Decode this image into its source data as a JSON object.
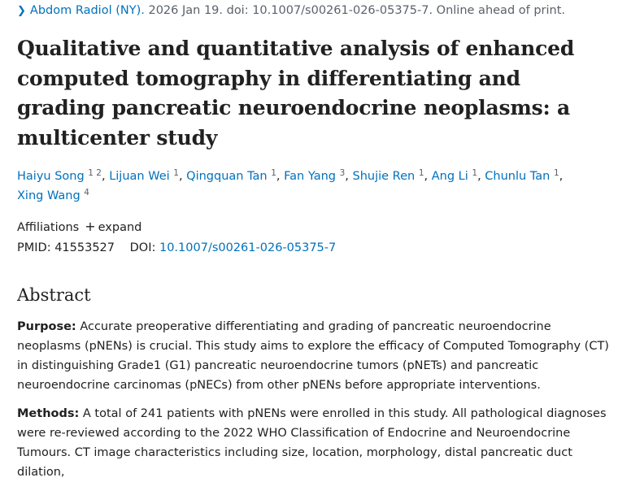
{
  "citation": {
    "journal": "Abdom Radiol (NY).",
    "details": " 2026 Jan 19. doi: 10.1007/s00261-026-05375-7. Online ahead of print."
  },
  "title": "Qualitative and quantitative analysis of enhanced computed tomography in differentiating and grading pancreatic neuroendocrine neoplasms: a multicenter study",
  "authors": [
    {
      "name": "Haiyu Song",
      "aff": "1 2"
    },
    {
      "name": "Lijuan Wei",
      "aff": "1"
    },
    {
      "name": "Qingquan Tan",
      "aff": "1"
    },
    {
      "name": "Fan Yang",
      "aff": "3"
    },
    {
      "name": "Shujie Ren",
      "aff": "1"
    },
    {
      "name": "Ang Li",
      "aff": "1"
    },
    {
      "name": "Chunlu Tan",
      "aff": "1"
    },
    {
      "name": "Xing Wang",
      "aff": "4"
    }
  ],
  "affiliations": {
    "label": "Affiliations",
    "toggle": "expand"
  },
  "identifiers": {
    "pmid_label": "PMID:",
    "pmid": "41553527",
    "doi_label": "DOI:",
    "doi": "10.1007/s00261-026-05375-7"
  },
  "abstract": {
    "heading": "Abstract",
    "purpose_label": "Purpose:",
    "purpose_text": " Accurate preoperative differentiating and grading of pancreatic neuroendocrine neoplasms (pNENs) is crucial. This study aims to explore the efficacy of Computed Tomography (CT) in distinguishing Grade1 (G1) pancreatic neuroendocrine tumors (pNETs) and pancreatic neuroendocrine carcinomas (pNECs) from other pNENs before appropriate interventions.",
    "methods_label": "Methods:",
    "methods_text": " A total of 241 patients with pNENs were enrolled in this study. All pathological diagnoses were re-reviewed according to the 2022 WHO Classification of Endocrine and Neuroendocrine Tumours. CT image characteristics including size, location, morphology, distal pancreatic duct dilation,"
  },
  "colors": {
    "link": "#0071bc",
    "text": "#212121",
    "muted": "#5b616b"
  }
}
